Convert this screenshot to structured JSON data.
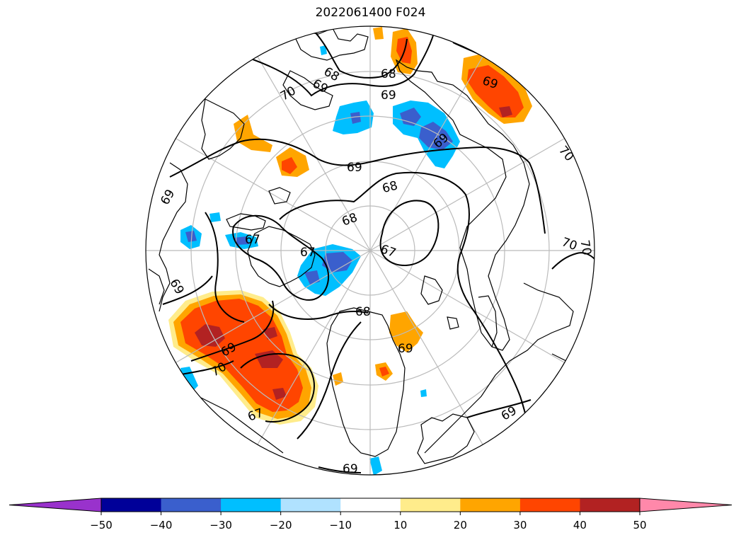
{
  "title": "2022061400 F024",
  "colorbar": {
    "extend": "both",
    "under_color": "#9932cc",
    "over_color": "#ff88aa",
    "segments": [
      {
        "from": -50,
        "to": -40,
        "color": "#000099"
      },
      {
        "from": -40,
        "to": -30,
        "color": "#3a5fcd"
      },
      {
        "from": -30,
        "to": -20,
        "color": "#00bfff"
      },
      {
        "from": -20,
        "to": -10,
        "color": "#b0e2ff"
      },
      {
        "from": -10,
        "to": 10,
        "color": "#ffffff"
      },
      {
        "from": 10,
        "to": 20,
        "color": "#ffec8b"
      },
      {
        "from": 20,
        "to": 30,
        "color": "#ffa500"
      },
      {
        "from": 30,
        "to": 40,
        "color": "#ff4500"
      },
      {
        "from": 40,
        "to": 50,
        "color": "#b22222"
      }
    ],
    "ticks": [
      "−50",
      "−40",
      "−30",
      "−20",
      "−10",
      "10",
      "20",
      "30",
      "40",
      "50"
    ]
  },
  "contour_labels": [
    "68",
    "69",
    "68",
    "69",
    "69",
    "69",
    "69",
    "70",
    "70",
    "69",
    "69",
    "68",
    "68",
    "67",
    "67",
    "67",
    "68",
    "70",
    "70",
    "69",
    "69",
    "69",
    "70",
    "67",
    "69"
  ]
}
